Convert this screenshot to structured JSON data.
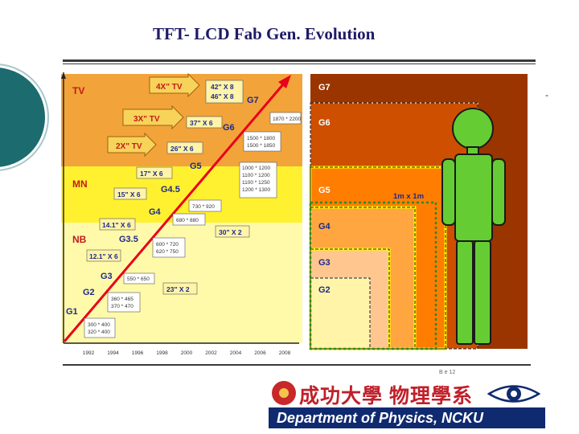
{
  "slide": {
    "title": "TFT- LCD Fab Gen. Evolution",
    "corner_mark": "-",
    "small_note": "B e 12"
  },
  "colors": {
    "band_tv": "#f2a43a",
    "band_mn": "#fff130",
    "band_nb": "#fffaaa",
    "trend_line": "#e8001c",
    "size_label_blue": "#1d2a8a",
    "gen_label_blue": "#1d2a8a",
    "gen_label_white": "#ffffff"
  },
  "left_panel": {
    "years": [
      "1992",
      "1994",
      "1996",
      "1998",
      "2000",
      "2002",
      "2004",
      "2006",
      "2008"
    ],
    "bands": [
      {
        "label": "TV",
        "color": "#f2a43a"
      },
      {
        "label": "MN",
        "color": "#fff130"
      },
      {
        "label": "NB",
        "color": "#fffaaa"
      }
    ],
    "generation_labels": [
      "G1",
      "G2",
      "G3",
      "G3.5",
      "G4",
      "G4.5",
      "G5",
      "G6",
      "G7"
    ],
    "tv_arrows": [
      "4X\" TV",
      "3X\" TV",
      "2X\" TV"
    ],
    "substrate_sizes": [
      "300 * 400\n320 * 400",
      "360 * 465\n370 * 470",
      "550 * 650",
      "600 * 720\n620 * 750",
      "680 * 880\n730 * 920",
      "1000 * 1200\n1100 * 1200\n1100 * 1250\n1200 * 1300",
      "1500 * 1800\n1500 * 1850",
      "1870 * 2200"
    ],
    "panel_sizes": [
      "12.1\" X 6",
      "14.1\" X 6",
      "15\" X 6",
      "17\" X 6",
      "23\" X 2",
      "30\" X 2",
      "26\" X 6",
      "37\" X 6",
      "42\" X 8\n46\" X 8"
    ]
  },
  "right_panel": {
    "generations": [
      "G7",
      "G6",
      "G5",
      "G4",
      "G3",
      "G2"
    ],
    "scale_label": "1m x 1m"
  },
  "logo": {
    "chinese_text": "成功大學 物理學系",
    "department": "Department of Physics, NCKU"
  }
}
